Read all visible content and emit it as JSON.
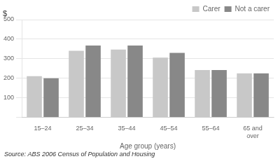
{
  "chart_data": {
    "type": "bar",
    "categories": [
      "15–24",
      "25–34",
      "35–44",
      "45–54",
      "55–64",
      "65 and\nover"
    ],
    "series": [
      {
        "name": "Carer",
        "color": "#c8c8c8",
        "values": [
          210,
          340,
          347,
          305,
          242,
          225
        ]
      },
      {
        "name": "Not a carer",
        "color": "#888888",
        "values": [
          200,
          367,
          367,
          330,
          242,
          225
        ]
      }
    ],
    "xlabel": "Age group (years)",
    "ylabel": "$",
    "annotations": [
      "Source: ABS 2006 Census of Population and Housing"
    ],
    "ylim": [
      0,
      500
    ],
    "yticks": [
      {
        "value": 0,
        "label": ""
      },
      100,
      200,
      300,
      400,
      500
    ],
    "grid": true,
    "legend": "upper right"
  }
}
